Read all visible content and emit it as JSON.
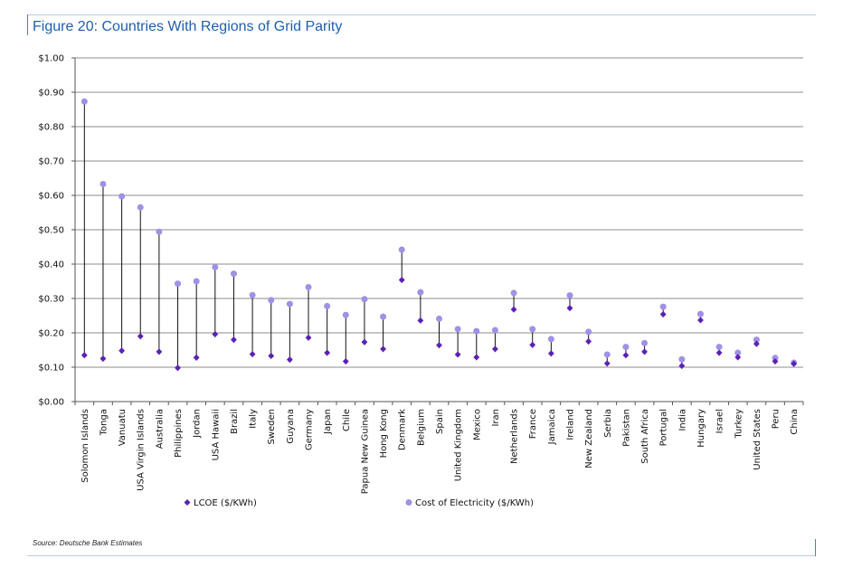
{
  "figure_title": "Figure 20: Countries With Regions of Grid Parity",
  "source_note": "Source: Deutsche Bank Estimates",
  "colors": {
    "accent_title": "#1f5fae",
    "lcoe": "#5b21b6",
    "cost": "#a090e6",
    "gridline": "#8c8c8c",
    "frame": "#4a7ec2"
  },
  "chart_data": {
    "type": "scatter",
    "title": "Figure 20: Countries With Regions of Grid Parity",
    "categories": [
      "Solomon Islands",
      "Tonga",
      "Vanuatu",
      "USA Virgin Islands",
      "Australia",
      "Philippines",
      "Jordan",
      "USA Hawaii",
      "Brazil",
      "Italy",
      "Sweden",
      "Guyana",
      "Germany",
      "Japan",
      "Chile",
      "Papua New Guinea",
      "Hong Kong",
      "Denmark",
      "Belgium",
      "Spain",
      "United Kingdom",
      "Mexico",
      "Iran",
      "Netherlands",
      "France",
      "Jamaica",
      "Ireland",
      "New Zealand",
      "Serbia",
      "Pakistan",
      "South Africa",
      "Portugal",
      "India",
      "Hungary",
      "Israel",
      "Turkey",
      "United States",
      "Peru",
      "China"
    ],
    "series": [
      {
        "name": "LCOE ($/KWh)",
        "marker": "diamond",
        "values": [
          0.135,
          0.125,
          0.148,
          0.19,
          0.145,
          0.098,
          0.128,
          0.196,
          0.18,
          0.138,
          0.133,
          0.122,
          0.186,
          0.142,
          0.117,
          0.173,
          0.153,
          0.354,
          0.236,
          0.164,
          0.137,
          0.129,
          0.153,
          0.268,
          0.165,
          0.14,
          0.272,
          0.175,
          0.111,
          0.135,
          0.145,
          0.254,
          0.104,
          0.237,
          0.142,
          0.129,
          0.168,
          0.117,
          0.11
        ]
      },
      {
        "name": "Cost of Electricity ($/KWh)",
        "marker": "circle",
        "values": [
          0.873,
          0.633,
          0.597,
          0.565,
          0.494,
          0.343,
          0.35,
          0.391,
          0.372,
          0.31,
          0.295,
          0.284,
          0.333,
          0.278,
          0.252,
          0.298,
          0.247,
          0.442,
          0.318,
          0.241,
          0.211,
          0.205,
          0.208,
          0.316,
          0.211,
          0.182,
          0.309,
          0.203,
          0.137,
          0.159,
          0.17,
          0.276,
          0.123,
          0.255,
          0.159,
          0.142,
          0.18,
          0.127,
          0.113
        ]
      }
    ],
    "yticks": [
      "$0.00",
      "$0.10",
      "$0.20",
      "$0.30",
      "$0.40",
      "$0.50",
      "$0.60",
      "$0.70",
      "$0.80",
      "$0.90",
      "$1.00"
    ],
    "ylim": [
      0,
      1.0
    ],
    "grid": true,
    "legend_placement": "bottom"
  }
}
